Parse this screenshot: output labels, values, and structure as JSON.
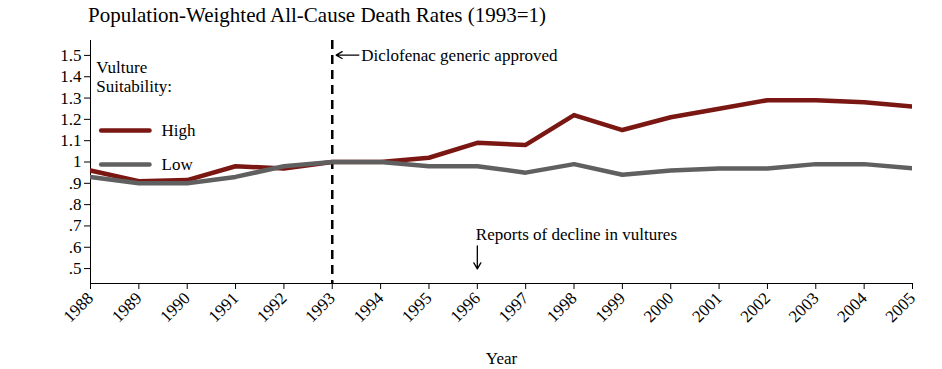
{
  "chart_data": {
    "type": "line",
    "title": "Population-Weighted All-Cause Death Rates (1993=1)",
    "x_label": "Year",
    "legend_title": "Vulture Suitability:",
    "legend": "top-left",
    "grid": false,
    "x": [
      1988,
      1989,
      1990,
      1991,
      1992,
      1993,
      1994,
      1995,
      1996,
      1997,
      1998,
      1999,
      2000,
      2001,
      2002,
      2003,
      2004,
      2005
    ],
    "series": [
      {
        "name": "High",
        "color": "#7a1712",
        "values": [
          0.96,
          0.91,
          0.915,
          0.98,
          0.97,
          1.0,
          1.0,
          1.02,
          1.09,
          1.08,
          1.22,
          1.15,
          1.21,
          1.25,
          1.29,
          1.29,
          1.28,
          1.26
        ]
      },
      {
        "name": "Low",
        "color": "#606060",
        "values": [
          0.93,
          0.9,
          0.9,
          0.93,
          0.98,
          1.0,
          1.0,
          0.98,
          0.98,
          0.95,
          0.99,
          0.94,
          0.96,
          0.97,
          0.97,
          0.99,
          0.99,
          0.97
        ]
      }
    ],
    "xlim": [
      1988,
      2005
    ],
    "xticks": [
      1988,
      1989,
      1990,
      1991,
      1992,
      1993,
      1994,
      1995,
      1996,
      1997,
      1998,
      1999,
      2000,
      2001,
      2002,
      2003,
      2004,
      2005
    ],
    "ylim": [
      0.43,
      1.57
    ],
    "yticks": [
      {
        "value": 0.5,
        "label": ".5"
      },
      {
        "value": 0.6,
        "label": ".6"
      },
      {
        "value": 0.7,
        "label": ".7"
      },
      {
        "value": 0.8,
        "label": ".8"
      },
      {
        "value": 0.9,
        "label": ".9"
      },
      1,
      1.1,
      1.2,
      1.3,
      1.4,
      1.5
    ],
    "annotations": [
      {
        "text": "Diclofenac generic approved",
        "x": 1993,
        "line_style": "dashed"
      },
      {
        "text": "Reports of decline in vultures",
        "x": 1996
      }
    ]
  }
}
